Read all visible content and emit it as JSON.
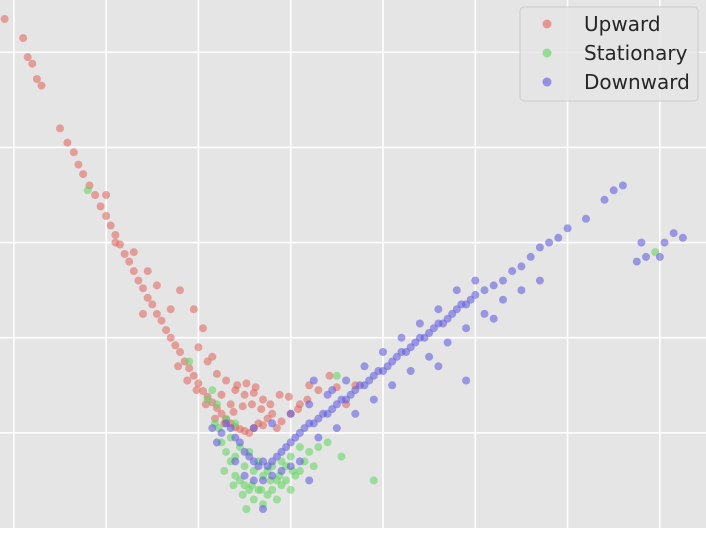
{
  "chart_data": {
    "type": "scatter",
    "title": "",
    "xlabel": "",
    "ylabel": "",
    "grid": true,
    "background": "#e5e5e5",
    "grid_color": "#ffffff",
    "legend_position": "top-right",
    "x_tick_values": [
      -3,
      -2,
      -1,
      0,
      1,
      2,
      3,
      4
    ],
    "y_tick_values": [
      0,
      1,
      2,
      3,
      4
    ],
    "xlim": [
      -3.15,
      4.5
    ],
    "ylim": [
      -1.0,
      4.55
    ],
    "series": [
      {
        "name": "Upward",
        "color": "#e2625a",
        "points": [
          [
            -3.1,
            4.35
          ],
          [
            -2.9,
            4.15
          ],
          [
            -2.85,
            3.95
          ],
          [
            -2.8,
            3.88
          ],
          [
            -2.75,
            3.72
          ],
          [
            -2.7,
            3.65
          ],
          [
            -2.5,
            3.2
          ],
          [
            -2.42,
            3.05
          ],
          [
            -2.35,
            2.95
          ],
          [
            -2.3,
            2.82
          ],
          [
            -2.25,
            2.72
          ],
          [
            -2.18,
            2.6
          ],
          [
            -2.12,
            2.5
          ],
          [
            -2.06,
            2.38
          ],
          [
            -2.0,
            2.28
          ],
          [
            -1.95,
            2.18
          ],
          [
            -1.9,
            2.08
          ],
          [
            -1.85,
            1.98
          ],
          [
            -1.8,
            1.88
          ],
          [
            -1.75,
            1.8
          ],
          [
            -1.7,
            1.7
          ],
          [
            -1.65,
            1.6
          ],
          [
            -1.6,
            1.52
          ],
          [
            -1.55,
            1.42
          ],
          [
            -1.5,
            1.35
          ],
          [
            -1.45,
            1.25
          ],
          [
            -1.4,
            1.18
          ],
          [
            -1.35,
            1.08
          ],
          [
            -1.3,
            1.0
          ],
          [
            -1.25,
            0.92
          ],
          [
            -1.2,
            0.85
          ],
          [
            -1.15,
            0.75
          ],
          [
            -1.1,
            0.68
          ],
          [
            -1.05,
            0.6
          ],
          [
            -1.0,
            0.52
          ],
          [
            -0.95,
            0.44
          ],
          [
            -0.9,
            0.38
          ],
          [
            -0.85,
            0.32
          ],
          [
            -0.8,
            0.26
          ],
          [
            -0.75,
            0.2
          ],
          [
            -0.7,
            0.14
          ],
          [
            -0.65,
            0.1
          ],
          [
            -0.6,
            0.06
          ],
          [
            -0.55,
            0.04
          ],
          [
            -0.5,
            0.02
          ],
          [
            -0.45,
            0.0
          ],
          [
            -0.4,
            0.05
          ],
          [
            -0.35,
            0.1
          ],
          [
            -0.3,
            0.08
          ],
          [
            -0.25,
            0.15
          ],
          [
            -0.2,
            0.2
          ],
          [
            -0.15,
            0.05
          ],
          [
            -0.1,
            0.12
          ],
          [
            0.0,
            0.2
          ],
          [
            0.1,
            0.3
          ],
          [
            0.2,
            0.5
          ],
          [
            0.3,
            0.45
          ],
          [
            0.5,
            0.48
          ],
          [
            0.6,
            0.3
          ],
          [
            0.7,
            0.5
          ],
          [
            -1.2,
            1.5
          ],
          [
            -1.3,
            1.3
          ],
          [
            -1.0,
            0.9
          ],
          [
            -0.9,
            0.75
          ],
          [
            -0.8,
            0.62
          ],
          [
            -0.7,
            0.55
          ],
          [
            -0.6,
            0.45
          ],
          [
            -0.5,
            0.4
          ],
          [
            -0.4,
            0.42
          ],
          [
            -0.3,
            0.35
          ],
          [
            -1.05,
            1.3
          ],
          [
            -0.95,
            1.1
          ],
          [
            -1.6,
            1.25
          ],
          [
            -1.45,
            1.55
          ],
          [
            -2.0,
            2.5
          ],
          [
            -1.9,
            2.0
          ],
          [
            -1.7,
            1.9
          ],
          [
            -1.55,
            1.7
          ],
          [
            -0.75,
            0.4
          ],
          [
            -0.65,
            0.3
          ],
          [
            -1.22,
            0.7
          ],
          [
            -1.12,
            0.55
          ],
          [
            -1.02,
            0.45
          ],
          [
            -0.92,
            0.3
          ],
          [
            -0.82,
            0.15
          ],
          [
            -0.72,
            0.1
          ],
          [
            -0.62,
            0.22
          ],
          [
            -0.52,
            0.28
          ],
          [
            -0.42,
            0.3
          ],
          [
            -0.32,
            0.25
          ],
          [
            -0.22,
            0.3
          ],
          [
            -0.12,
            0.4
          ],
          [
            -0.02,
            0.38
          ],
          [
            0.08,
            0.25
          ],
          [
            0.18,
            0.35
          ],
          [
            -0.58,
            0.5
          ],
          [
            -0.48,
            0.52
          ],
          [
            -0.38,
            0.48
          ],
          [
            0.42,
            0.6
          ],
          [
            -0.85,
            0.8
          ]
        ]
      },
      {
        "name": "Stationary",
        "color": "#5ed65e",
        "points": [
          [
            -2.2,
            2.55
          ],
          [
            -1.1,
            0.75
          ],
          [
            -0.85,
            0.45
          ],
          [
            -0.82,
            0.1
          ],
          [
            -0.78,
            0.05
          ],
          [
            -0.75,
            -0.1
          ],
          [
            -0.7,
            -0.2
          ],
          [
            -0.65,
            -0.3
          ],
          [
            -0.6,
            -0.45
          ],
          [
            -0.55,
            -0.5
          ],
          [
            -0.5,
            -0.55
          ],
          [
            -0.45,
            -0.6
          ],
          [
            -0.4,
            -0.7
          ],
          [
            -0.35,
            -0.6
          ],
          [
            -0.3,
            -0.75
          ],
          [
            -0.25,
            -0.65
          ],
          [
            -0.2,
            -0.6
          ],
          [
            -0.15,
            -0.7
          ],
          [
            -0.1,
            -0.55
          ],
          [
            -0.05,
            -0.5
          ],
          [
            0.0,
            -0.6
          ],
          [
            0.05,
            -0.45
          ],
          [
            0.1,
            -0.4
          ],
          [
            0.15,
            -0.3
          ],
          [
            0.2,
            -0.2
          ],
          [
            0.3,
            -0.15
          ],
          [
            0.4,
            -0.1
          ],
          [
            0.55,
            -0.25
          ],
          [
            0.9,
            -0.5
          ],
          [
            -0.6,
            -0.25
          ],
          [
            -0.5,
            -0.35
          ],
          [
            -0.4,
            -0.4
          ],
          [
            -0.3,
            -0.45
          ],
          [
            -0.2,
            -0.35
          ],
          [
            -0.1,
            -0.3
          ],
          [
            0.0,
            -0.25
          ],
          [
            -0.65,
            -0.05
          ],
          [
            -0.55,
            -0.15
          ],
          [
            -0.45,
            -0.2
          ],
          [
            -0.35,
            -0.3
          ],
          [
            -0.25,
            -0.4
          ],
          [
            -0.15,
            -0.5
          ],
          [
            -0.05,
            -0.35
          ],
          [
            0.1,
            -0.15
          ],
          [
            -0.7,
            0.15
          ],
          [
            -0.6,
            0.1
          ],
          [
            -0.8,
            0.3
          ],
          [
            -0.9,
            0.35
          ],
          [
            3.95,
            1.9
          ],
          [
            0.5,
            0.6
          ],
          [
            -0.72,
            -0.4
          ],
          [
            -0.62,
            -0.55
          ],
          [
            -0.52,
            -0.65
          ],
          [
            -0.42,
            -0.55
          ],
          [
            -0.32,
            -0.6
          ],
          [
            -0.22,
            -0.5
          ],
          [
            -0.12,
            -0.45
          ],
          [
            0.02,
            -0.4
          ],
          [
            0.25,
            -0.35
          ],
          [
            -0.48,
            -0.8
          ]
        ]
      },
      {
        "name": "Downward",
        "color": "#5b56de",
        "points": [
          [
            -0.75,
            0.0
          ],
          [
            -0.7,
            0.1
          ],
          [
            -0.65,
            0.05
          ],
          [
            -0.6,
            -0.05
          ],
          [
            -0.55,
            -0.1
          ],
          [
            -0.5,
            -0.2
          ],
          [
            -0.45,
            -0.25
          ],
          [
            -0.4,
            -0.3
          ],
          [
            -0.35,
            -0.35
          ],
          [
            -0.3,
            -0.3
          ],
          [
            -0.25,
            -0.35
          ],
          [
            -0.2,
            -0.3
          ],
          [
            -0.15,
            -0.25
          ],
          [
            -0.1,
            -0.2
          ],
          [
            -0.05,
            -0.15
          ],
          [
            0.0,
            -0.1
          ],
          [
            0.05,
            -0.05
          ],
          [
            0.1,
            0.0
          ],
          [
            0.15,
            0.05
          ],
          [
            0.2,
            0.1
          ],
          [
            0.25,
            0.1
          ],
          [
            0.3,
            0.15
          ],
          [
            0.35,
            0.2
          ],
          [
            0.4,
            0.2
          ],
          [
            0.45,
            0.25
          ],
          [
            0.5,
            0.3
          ],
          [
            0.55,
            0.35
          ],
          [
            0.6,
            0.35
          ],
          [
            0.65,
            0.4
          ],
          [
            0.7,
            0.45
          ],
          [
            0.75,
            0.5
          ],
          [
            0.8,
            0.5
          ],
          [
            0.85,
            0.55
          ],
          [
            0.9,
            0.6
          ],
          [
            0.95,
            0.65
          ],
          [
            1.0,
            0.65
          ],
          [
            1.05,
            0.7
          ],
          [
            1.1,
            0.75
          ],
          [
            1.15,
            0.8
          ],
          [
            1.2,
            0.85
          ],
          [
            1.25,
            0.85
          ],
          [
            1.3,
            0.9
          ],
          [
            1.35,
            0.95
          ],
          [
            1.4,
            1.0
          ],
          [
            1.45,
            1.0
          ],
          [
            1.5,
            1.05
          ],
          [
            1.55,
            1.1
          ],
          [
            1.6,
            1.15
          ],
          [
            1.65,
            1.15
          ],
          [
            1.7,
            1.2
          ],
          [
            1.75,
            1.25
          ],
          [
            1.8,
            1.3
          ],
          [
            1.85,
            1.35
          ],
          [
            1.9,
            1.35
          ],
          [
            1.95,
            1.4
          ],
          [
            2.0,
            1.45
          ],
          [
            2.1,
            1.5
          ],
          [
            2.2,
            1.55
          ],
          [
            2.3,
            1.6
          ],
          [
            2.4,
            1.7
          ],
          [
            2.5,
            1.75
          ],
          [
            2.6,
            1.85
          ],
          [
            2.7,
            1.95
          ],
          [
            2.8,
            2.0
          ],
          [
            2.9,
            2.05
          ],
          [
            3.0,
            2.15
          ],
          [
            3.2,
            2.25
          ],
          [
            3.4,
            2.45
          ],
          [
            3.5,
            2.55
          ],
          [
            3.6,
            2.6
          ],
          [
            3.75,
            1.8
          ],
          [
            3.8,
            2.0
          ],
          [
            3.85,
            1.85
          ],
          [
            4.0,
            1.85
          ],
          [
            4.05,
            2.0
          ],
          [
            4.15,
            2.1
          ],
          [
            4.25,
            2.05
          ],
          [
            -0.5,
            -0.45
          ],
          [
            -0.4,
            -0.5
          ],
          [
            -0.3,
            -0.5
          ],
          [
            -0.2,
            -0.45
          ],
          [
            -0.1,
            -0.4
          ],
          [
            0.0,
            -0.35
          ],
          [
            0.1,
            -0.3
          ],
          [
            -0.6,
            -0.3
          ],
          [
            0.3,
            -0.05
          ],
          [
            0.5,
            0.05
          ],
          [
            0.7,
            0.2
          ],
          [
            0.9,
            0.35
          ],
          [
            1.1,
            0.5
          ],
          [
            1.3,
            0.65
          ],
          [
            1.5,
            0.8
          ],
          [
            1.7,
            0.95
          ],
          [
            1.9,
            1.1
          ],
          [
            2.1,
            1.25
          ],
          [
            2.3,
            1.4
          ],
          [
            2.5,
            1.5
          ],
          [
            2.7,
            1.6
          ],
          [
            0.4,
            0.4
          ],
          [
            0.6,
            0.55
          ],
          [
            0.8,
            0.7
          ],
          [
            1.0,
            0.85
          ],
          [
            1.2,
            1.0
          ],
          [
            1.4,
            1.15
          ],
          [
            1.6,
            1.3
          ],
          [
            1.8,
            1.5
          ],
          [
            2.0,
            1.6
          ],
          [
            0.2,
            0.3
          ],
          [
            0.0,
            0.2
          ],
          [
            -0.2,
            0.1
          ],
          [
            -0.4,
            0.05
          ],
          [
            1.6,
            0.7
          ],
          [
            2.2,
            1.2
          ],
          [
            -0.8,
            -0.1
          ],
          [
            -0.85,
            0.05
          ],
          [
            0.2,
            -0.5
          ],
          [
            -0.3,
            -0.8
          ],
          [
            0.25,
            0.55
          ],
          [
            0.45,
            0.45
          ],
          [
            1.9,
            0.55
          ]
        ]
      }
    ]
  }
}
